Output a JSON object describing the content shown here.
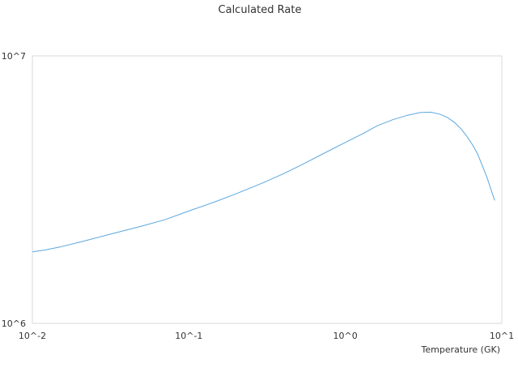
{
  "chart_data": {
    "type": "line",
    "title": "Calculated Rate",
    "xlabel": "Temperature (GK)",
    "ylabel": "",
    "x_scale": "log",
    "y_scale": "log",
    "xlim": [
      0.01,
      10
    ],
    "ylim": [
      1000000,
      10000000
    ],
    "x_ticks": [
      "10^-2",
      "10^-1",
      "10^0",
      "10^1"
    ],
    "y_ticks": [
      "10^6",
      "10^7"
    ],
    "grid": false,
    "line_color": "#5aa7e0",
    "series": [
      {
        "name": "",
        "x": [
          0.01,
          0.012,
          0.015,
          0.02,
          0.03,
          0.05,
          0.07,
          0.1,
          0.15,
          0.2,
          0.3,
          0.4,
          0.5,
          0.7,
          1.0,
          1.3,
          1.6,
          2.0,
          2.5,
          3.0,
          3.5,
          4.0,
          4.5,
          5.0,
          5.5,
          6.0,
          6.5,
          7.0,
          8.0,
          9.0
        ],
        "y": [
          1850000,
          1880000,
          1930000,
          2010000,
          2140000,
          2310000,
          2440000,
          2630000,
          2860000,
          3050000,
          3360000,
          3620000,
          3860000,
          4270000,
          4750000,
          5130000,
          5480000,
          5770000,
          6000000,
          6140000,
          6160000,
          6060000,
          5880000,
          5630000,
          5330000,
          4990000,
          4650000,
          4300000,
          3540000,
          2880000
        ]
      }
    ]
  }
}
